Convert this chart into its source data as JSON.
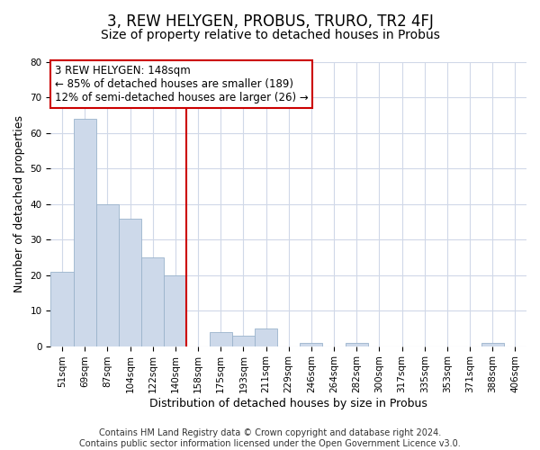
{
  "title": "3, REW HELYGEN, PROBUS, TRURO, TR2 4FJ",
  "subtitle": "Size of property relative to detached houses in Probus",
  "xlabel": "Distribution of detached houses by size in Probus",
  "ylabel": "Number of detached properties",
  "bar_labels": [
    "51sqm",
    "69sqm",
    "87sqm",
    "104sqm",
    "122sqm",
    "140sqm",
    "158sqm",
    "175sqm",
    "193sqm",
    "211sqm",
    "229sqm",
    "246sqm",
    "264sqm",
    "282sqm",
    "300sqm",
    "317sqm",
    "335sqm",
    "353sqm",
    "371sqm",
    "388sqm",
    "406sqm"
  ],
  "bar_values": [
    21,
    64,
    40,
    36,
    25,
    20,
    0,
    4,
    3,
    5,
    0,
    1,
    0,
    1,
    0,
    0,
    0,
    0,
    0,
    1,
    0
  ],
  "bar_color": "#cdd9ea",
  "bar_edge_color": "#9ab3cc",
  "vline_x_idx": 6,
  "vline_color": "#cc0000",
  "annotation_lines": [
    "3 REW HELYGEN: 148sqm",
    "← 85% of detached houses are smaller (189)",
    "12% of semi-detached houses are larger (26) →"
  ],
  "annotation_box_facecolor": "#ffffff",
  "annotation_box_edgecolor": "#cc0000",
  "footer_lines": [
    "Contains HM Land Registry data © Crown copyright and database right 2024.",
    "Contains public sector information licensed under the Open Government Licence v3.0."
  ],
  "ylim": [
    0,
    80
  ],
  "yticks": [
    0,
    10,
    20,
    30,
    40,
    50,
    60,
    70,
    80
  ],
  "plot_bg_color": "#ffffff",
  "fig_bg_color": "#ffffff",
  "grid_color": "#d0d8e8",
  "title_fontsize": 12,
  "subtitle_fontsize": 10,
  "axis_label_fontsize": 9,
  "tick_fontsize": 7.5,
  "annotation_fontsize": 8.5,
  "footer_fontsize": 7
}
